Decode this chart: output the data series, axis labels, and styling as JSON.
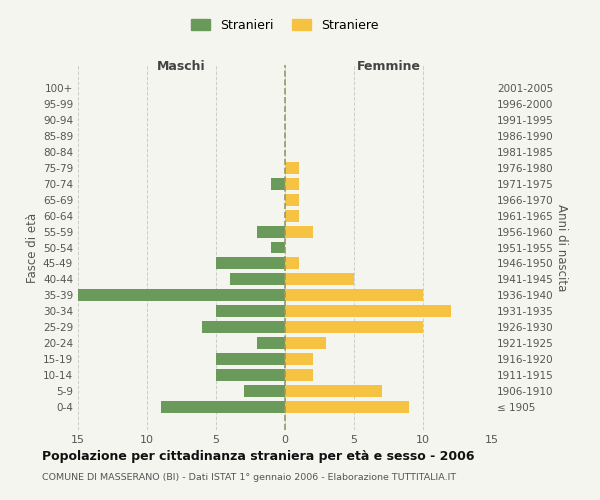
{
  "age_groups": [
    "100+",
    "95-99",
    "90-94",
    "85-89",
    "80-84",
    "75-79",
    "70-74",
    "65-69",
    "60-64",
    "55-59",
    "50-54",
    "45-49",
    "40-44",
    "35-39",
    "30-34",
    "25-29",
    "20-24",
    "15-19",
    "10-14",
    "5-9",
    "0-4"
  ],
  "birth_years": [
    "≤ 1905",
    "1906-1910",
    "1911-1915",
    "1916-1920",
    "1921-1925",
    "1926-1930",
    "1931-1935",
    "1936-1940",
    "1941-1945",
    "1946-1950",
    "1951-1955",
    "1956-1960",
    "1961-1965",
    "1966-1970",
    "1971-1975",
    "1976-1980",
    "1981-1985",
    "1986-1990",
    "1991-1995",
    "1996-2000",
    "2001-2005"
  ],
  "males": [
    0,
    0,
    0,
    0,
    0,
    0,
    1,
    0,
    0,
    2,
    1,
    5,
    4,
    15,
    5,
    6,
    2,
    5,
    5,
    3,
    9
  ],
  "females": [
    0,
    0,
    0,
    0,
    0,
    1,
    1,
    1,
    1,
    2,
    0,
    1,
    5,
    10,
    12,
    10,
    3,
    2,
    2,
    7,
    9
  ],
  "male_color": "#6a9a5a",
  "female_color": "#f5c242",
  "background_color": "#f5f5f0",
  "grid_color": "#cccccc",
  "dashed_line_color": "#999966",
  "title": "Popolazione per cittadinanza straniera per età e sesso - 2006",
  "subtitle": "COMUNE DI MASSERANO (BI) - Dati ISTAT 1° gennaio 2006 - Elaborazione TUTTITALIA.IT",
  "xlabel_left": "Maschi",
  "xlabel_right": "Femmine",
  "ylabel_left": "Fasce di età",
  "ylabel_right": "Anni di nascita",
  "legend_male": "Stranieri",
  "legend_female": "Straniere",
  "xlim": 15,
  "bar_height": 0.75
}
